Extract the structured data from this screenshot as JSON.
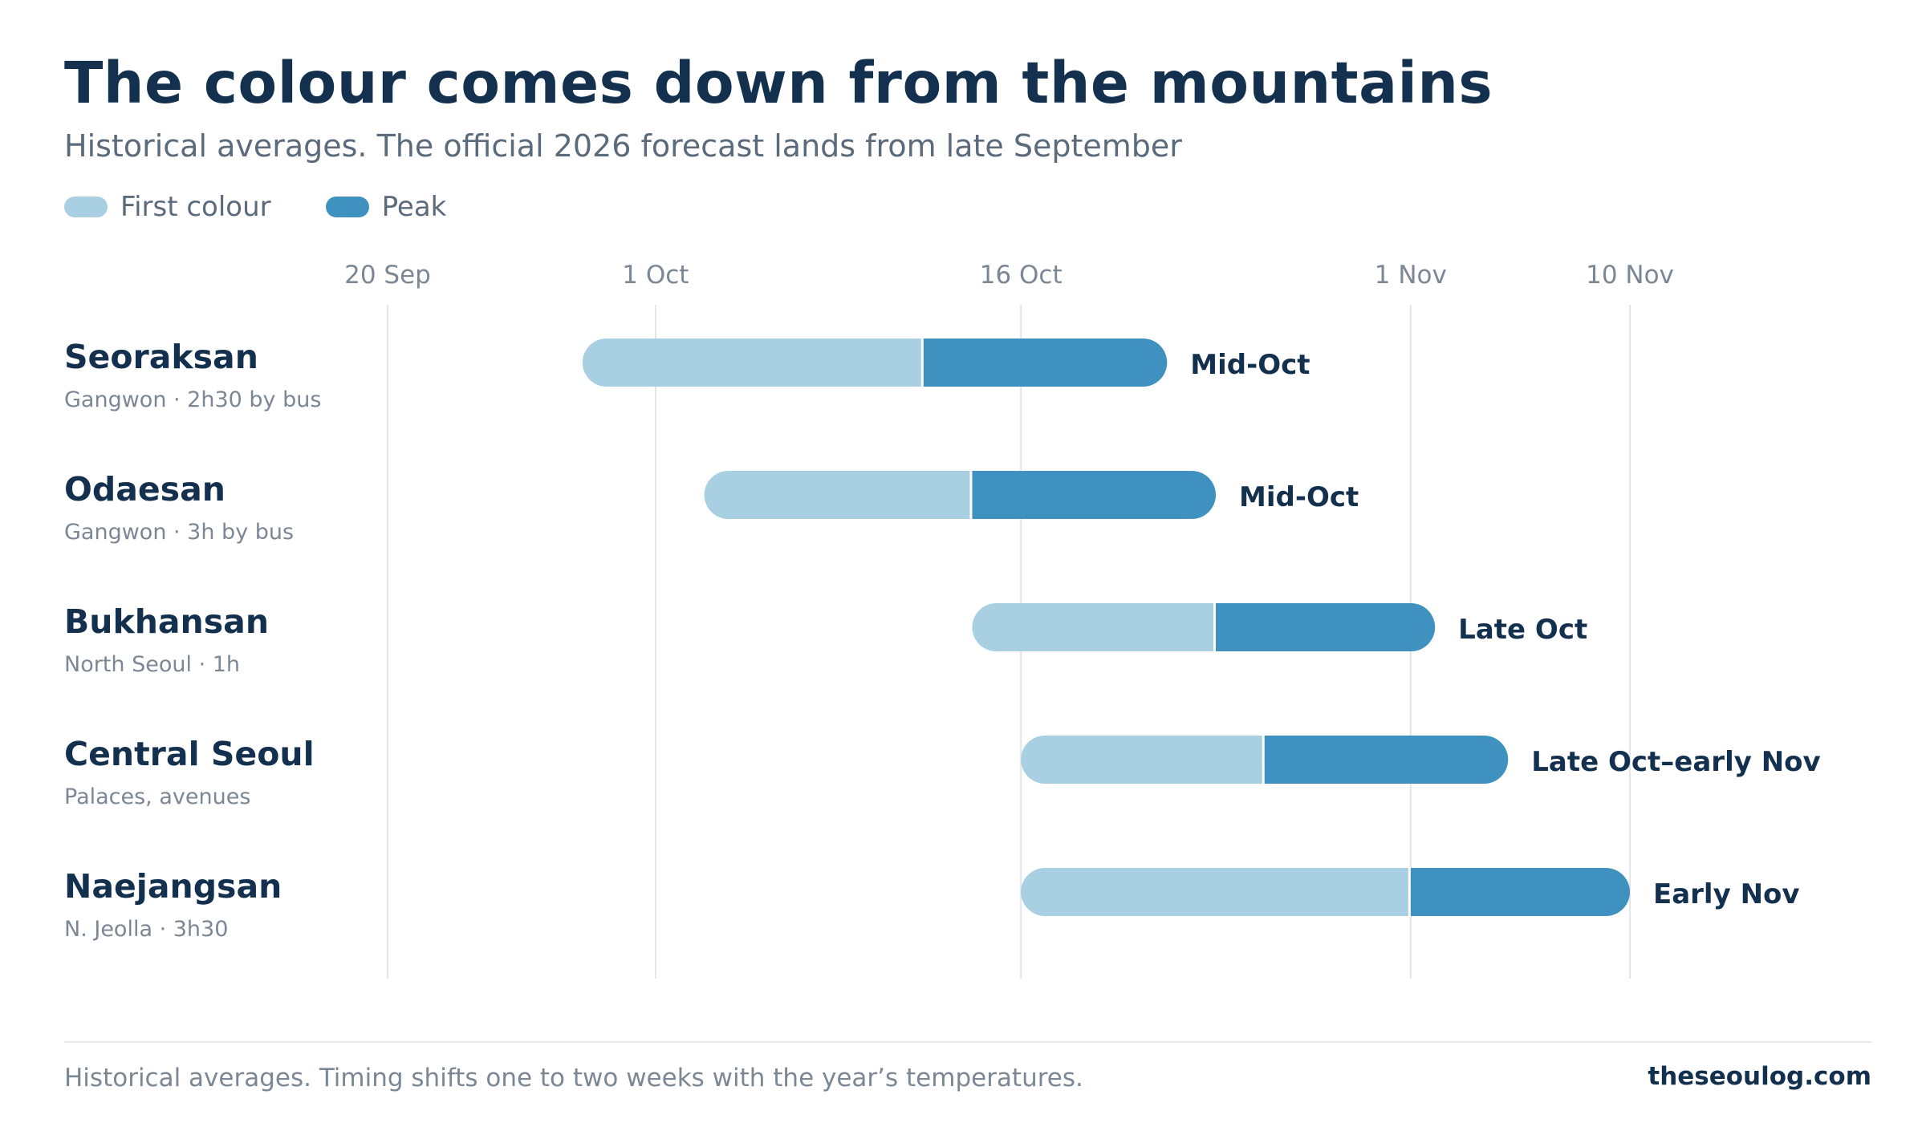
{
  "colors": {
    "first_colour": "#a9cfe2",
    "peak": "#3f92bf",
    "text_dark": "#14304f",
    "text_muted": "#7b8794",
    "grid": "#e3e5e8"
  },
  "chart_data": {
    "type": "bar",
    "subtype": "range-gantt",
    "title": "The colour comes down from the mountains",
    "subtitle": "Historical averages. The official 2026 forecast lands from late September",
    "legend": {
      "placement": "top-left",
      "items": [
        {
          "key": "first",
          "label": "First colour",
          "color": "#a9cfe2"
        },
        {
          "key": "peak",
          "label": "Peak",
          "color": "#3f92bf"
        }
      ]
    },
    "x_axis": {
      "ticks": [
        {
          "label": "20 Sep",
          "date": "2026-09-20"
        },
        {
          "label": "1 Oct",
          "date": "2026-10-01"
        },
        {
          "label": "16 Oct",
          "date": "2026-10-16"
        },
        {
          "label": "1 Nov",
          "date": "2026-11-01"
        },
        {
          "label": "10 Nov",
          "date": "2026-11-10"
        }
      ],
      "range": [
        "2026-09-20",
        "2026-11-10"
      ],
      "grid": true
    },
    "rows": [
      {
        "name": "Seoraksan",
        "sub": "Gangwon · 2h30 by bus",
        "first_start": "2026-09-28",
        "peak_start": "2026-10-12",
        "peak_end": "2026-10-22",
        "label": "Mid-Oct"
      },
      {
        "name": "Odaesan",
        "sub": "Gangwon · 3h by bus",
        "first_start": "2026-10-03",
        "peak_start": "2026-10-14",
        "peak_end": "2026-10-24",
        "label": "Mid-Oct"
      },
      {
        "name": "Bukhansan",
        "sub": "North Seoul · 1h",
        "first_start": "2026-10-14",
        "peak_start": "2026-10-24",
        "peak_end": "2026-11-02",
        "label": "Late Oct"
      },
      {
        "name": "Central Seoul",
        "sub": "Palaces, avenues",
        "first_start": "2026-10-16",
        "peak_start": "2026-10-26",
        "peak_end": "2026-11-05",
        "label": "Late Oct–early Nov"
      },
      {
        "name": "Naejangsan",
        "sub": "N. Jeolla · 3h30",
        "first_start": "2026-10-16",
        "peak_start": "2026-11-01",
        "peak_end": "2026-11-10",
        "label": "Early Nov"
      }
    ]
  },
  "footer": {
    "note": "Historical averages. Timing shifts one to two weeks with the year’s temperatures.",
    "site": "theseoulog.com"
  }
}
